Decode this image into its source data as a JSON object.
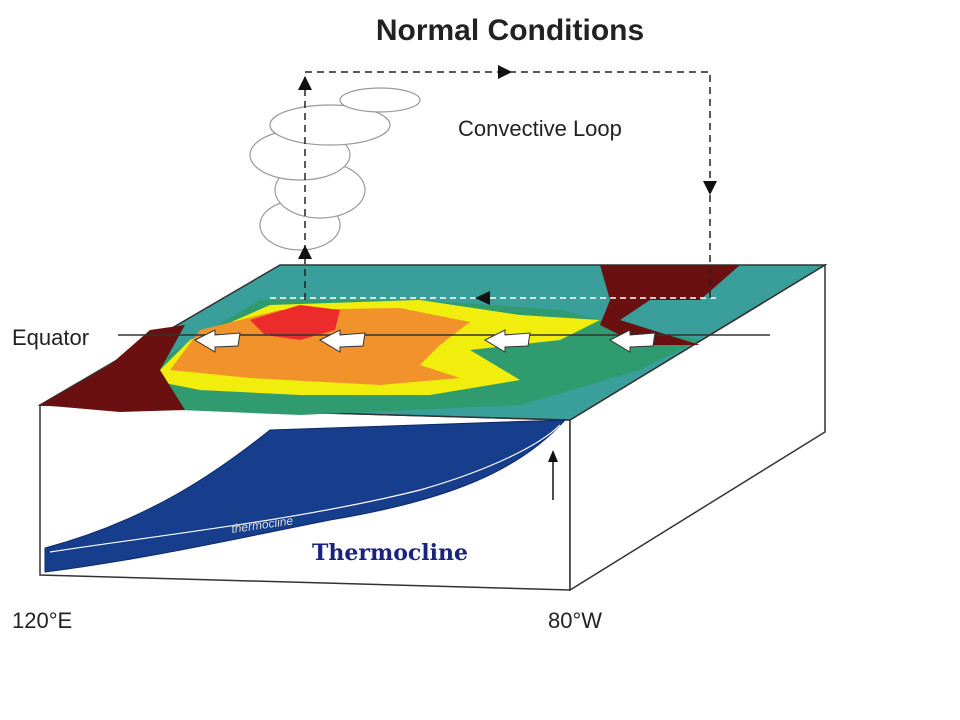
{
  "title": "Normal Conditions",
  "labels": {
    "convective_loop": "Convective Loop",
    "equator": "Equator",
    "thermocline": "Thermocline",
    "thermocline_handwritten": "thermocline",
    "west": "120°E",
    "east": "80°W"
  }
}
